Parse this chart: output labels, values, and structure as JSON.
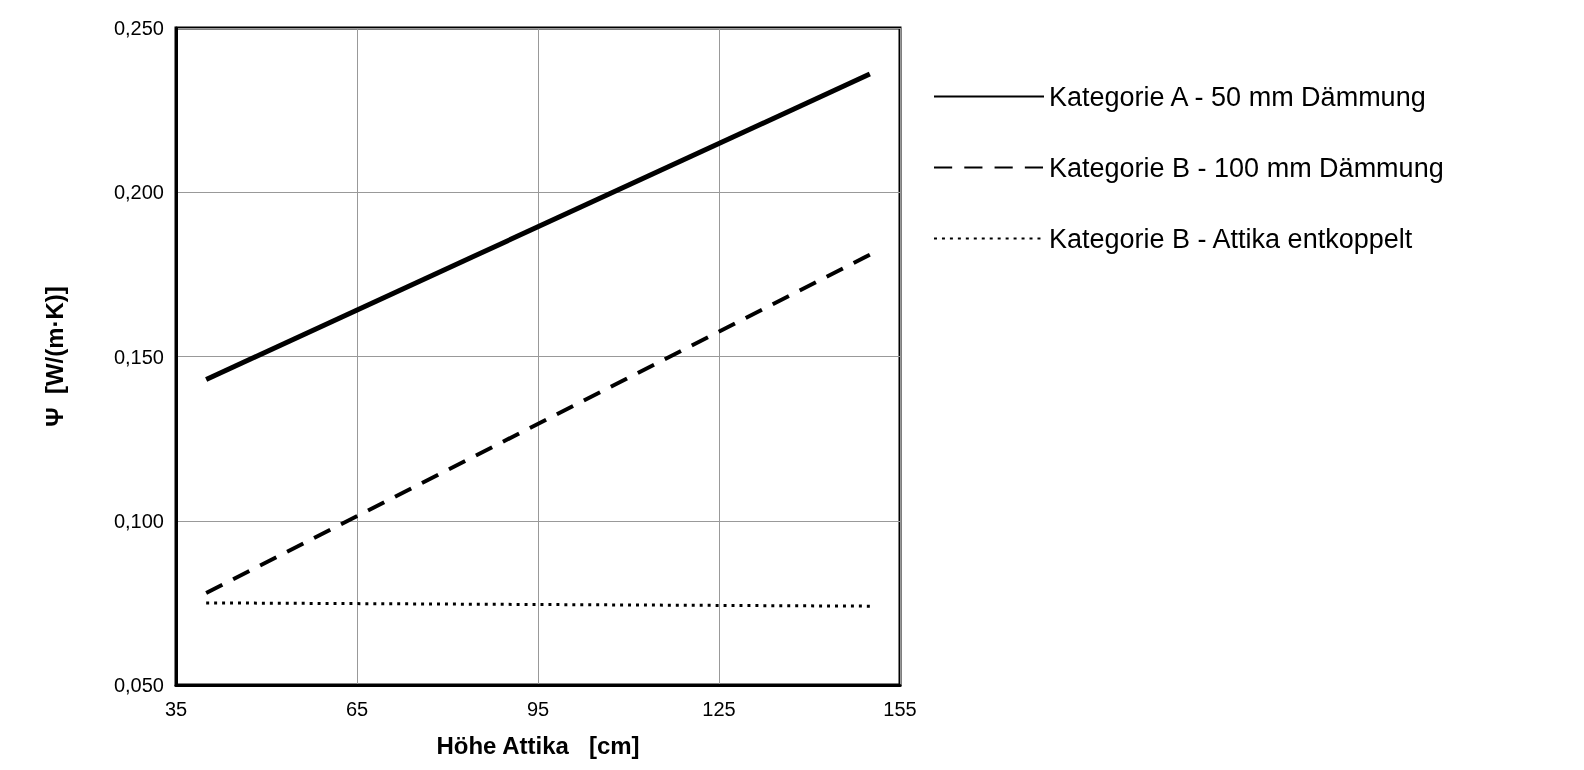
{
  "chart_data": {
    "type": "line",
    "xlabel": "Höhe Attika   [cm]",
    "ylabel": "Ψ  [W/(m·K)]",
    "xlim": [
      35,
      155
    ],
    "xticks": [
      35,
      65,
      95,
      125,
      155
    ],
    "ylim": [
      0.05,
      0.25
    ],
    "yticks": [
      {
        "value": 0.05,
        "label": "0,050"
      },
      {
        "value": 0.1,
        "label": "0,100"
      },
      {
        "value": 0.15,
        "label": "0,150"
      },
      {
        "value": 0.2,
        "label": "0,200"
      },
      {
        "value": 0.25,
        "label": "0,250"
      }
    ],
    "x": [
      40,
      150
    ],
    "grid": true,
    "legend": "right",
    "marker": "none",
    "series": [
      {
        "name": "Kategorie A - 50 mm Dämmung",
        "color": "#000000",
        "line_style": "solid",
        "values": [
          0.143,
          0.236
        ]
      },
      {
        "name": "Kategorie B - 100 mm Dämmung",
        "color": "#000000",
        "line_style": "dashed",
        "values": [
          0.078,
          0.181
        ]
      },
      {
        "name": "Kategorie B - Attika entkoppelt",
        "color": "#000000",
        "line_style": "dotted",
        "values": [
          0.075,
          0.074
        ]
      }
    ]
  }
}
